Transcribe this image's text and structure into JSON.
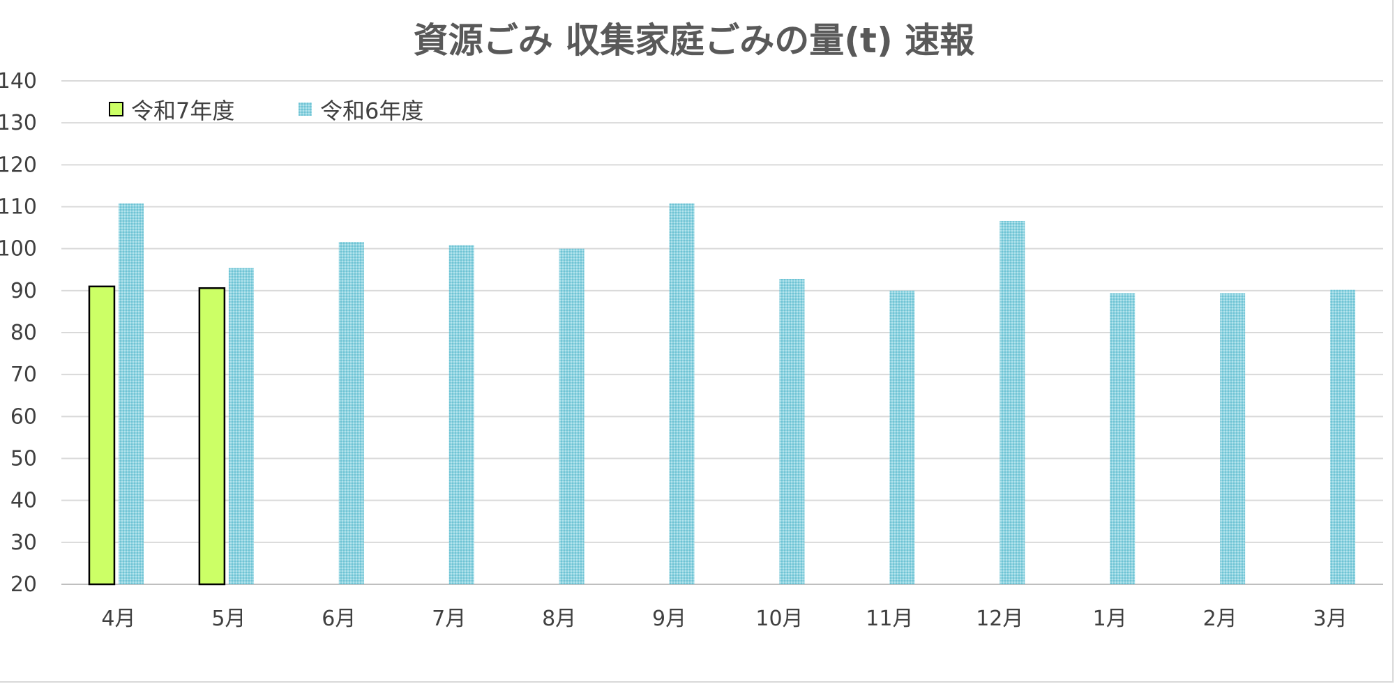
{
  "chart_data": {
    "type": "bar",
    "title": "資源ごみ  収集家庭ごみの量(t)  速報",
    "xlabel": "",
    "ylabel": "",
    "ylim": [
      20,
      140
    ],
    "ytick_step": 10,
    "grid": true,
    "legend_position": "top-left",
    "categories": [
      "4月",
      "5月",
      "6月",
      "7月",
      "8月",
      "9月",
      "10月",
      "11月",
      "12月",
      "1月",
      "2月",
      "3月"
    ],
    "series": [
      {
        "name": "令和7年度",
        "color": "#ccff66",
        "border_color": "#000000",
        "pattern": "solid",
        "values": [
          91,
          90.6,
          null,
          null,
          null,
          null,
          null,
          null,
          null,
          null,
          null,
          null
        ]
      },
      {
        "name": "令和6年度",
        "color": "#86cfdd",
        "border_color": "none",
        "pattern": "dotted",
        "values": [
          110.8,
          95.4,
          101.6,
          100.8,
          100,
          110.8,
          92.8,
          90,
          106.6,
          89.4,
          89.4,
          90.2
        ]
      }
    ]
  }
}
